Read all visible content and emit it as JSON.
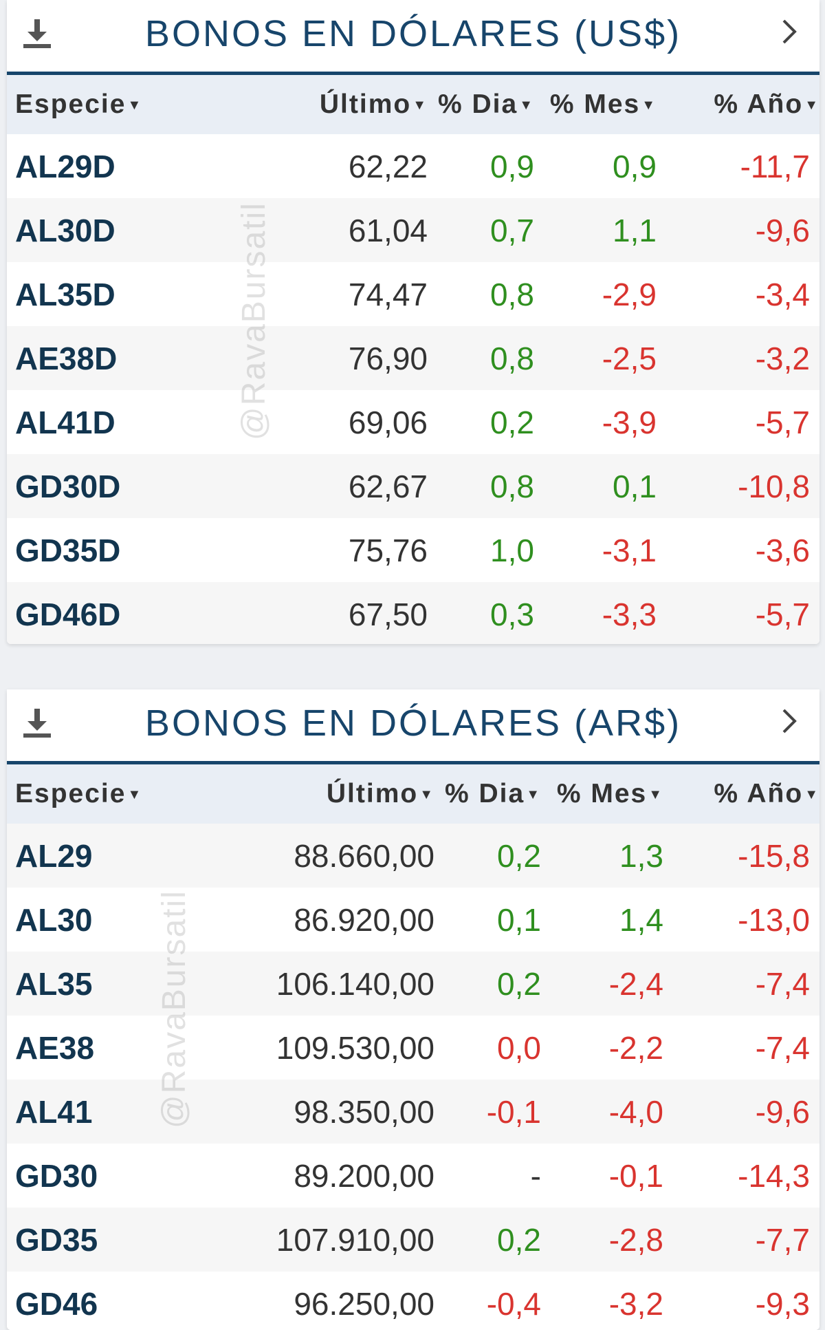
{
  "watermark": "@RavaBursatil",
  "colors": {
    "title": "#17456b",
    "positive": "#2f8f1f",
    "negative": "#d9342f",
    "header_bg": "#e9eef5"
  },
  "icons": {
    "download": "download-icon",
    "more": "chevron-right-icon",
    "sort": "caret-down-icon"
  },
  "panels": [
    {
      "id": "usd",
      "title": "BONOS EN DÓLARES (US$)",
      "columns": [
        "Especie",
        "Último",
        "% Dia",
        "% Mes",
        "% Año"
      ],
      "rows": [
        {
          "name": "AL29D",
          "last": "62,22",
          "day": "0,9",
          "month": "0,9",
          "year": "-11,7"
        },
        {
          "name": "AL30D",
          "last": "61,04",
          "day": "0,7",
          "month": "1,1",
          "year": "-9,6"
        },
        {
          "name": "AL35D",
          "last": "74,47",
          "day": "0,8",
          "month": "-2,9",
          "year": "-3,4"
        },
        {
          "name": "AE38D",
          "last": "76,90",
          "day": "0,8",
          "month": "-2,5",
          "year": "-3,2"
        },
        {
          "name": "AL41D",
          "last": "69,06",
          "day": "0,2",
          "month": "-3,9",
          "year": "-5,7"
        },
        {
          "name": "GD30D",
          "last": "62,67",
          "day": "0,8",
          "month": "0,1",
          "year": "-10,8"
        },
        {
          "name": "GD35D",
          "last": "75,76",
          "day": "1,0",
          "month": "-3,1",
          "year": "-3,6"
        },
        {
          "name": "GD46D",
          "last": "67,50",
          "day": "0,3",
          "month": "-3,3",
          "year": "-5,7"
        }
      ]
    },
    {
      "id": "ars",
      "title": "BONOS EN DÓLARES (AR$)",
      "columns": [
        "Especie",
        "Último",
        "% Dia",
        "% Mes",
        "% Año"
      ],
      "rows": [
        {
          "name": "AL29",
          "last": "88.660,00",
          "day": "0,2",
          "month": "1,3",
          "year": "-15,8"
        },
        {
          "name": "AL30",
          "last": "86.920,00",
          "day": "0,1",
          "month": "1,4",
          "year": "-13,0"
        },
        {
          "name": "AL35",
          "last": "106.140,00",
          "day": "0,2",
          "month": "-2,4",
          "year": "-7,4"
        },
        {
          "name": "AE38",
          "last": "109.530,00",
          "day": "0,0",
          "month": "-2,2",
          "year": "-7,4"
        },
        {
          "name": "AL41",
          "last": "98.350,00",
          "day": "-0,1",
          "month": "-4,0",
          "year": "-9,6"
        },
        {
          "name": "GD30",
          "last": "89.200,00",
          "day": "-",
          "month": "-0,1",
          "year": "-14,3"
        },
        {
          "name": "GD35",
          "last": "107.910,00",
          "day": "0,2",
          "month": "-2,8",
          "year": "-7,7"
        },
        {
          "name": "GD46",
          "last": "96.250,00",
          "day": "-0,4",
          "month": "-3,2",
          "year": "-9,3"
        }
      ]
    }
  ]
}
